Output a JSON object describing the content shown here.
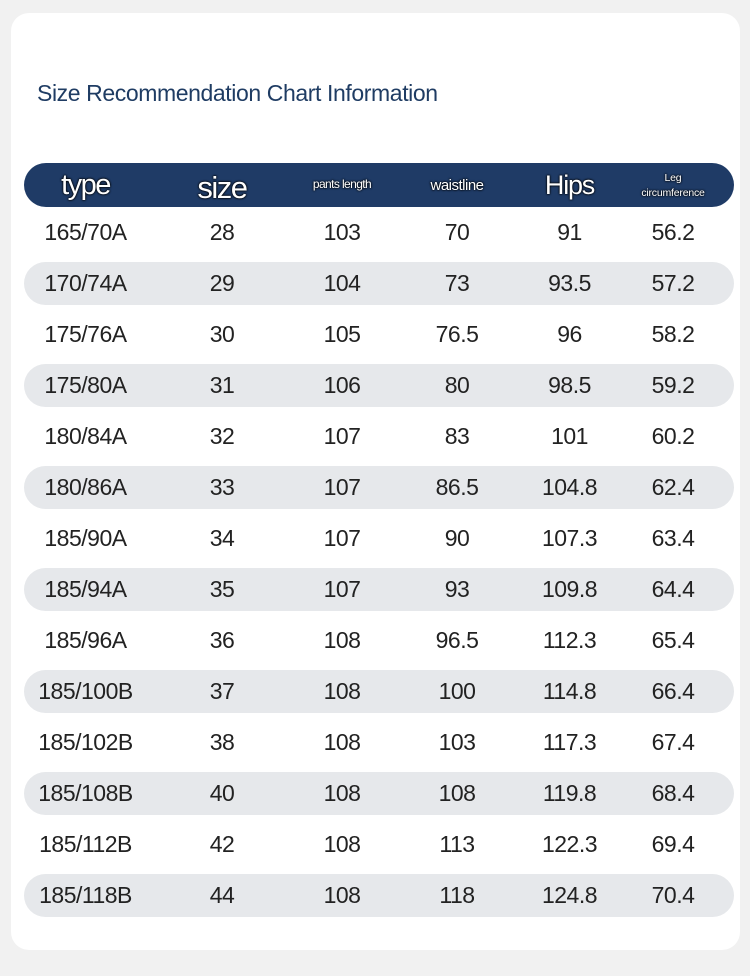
{
  "title": "Size Recommendation Chart Information",
  "headers": {
    "type": "type",
    "size": "size",
    "pants_length": "pants length",
    "waistline": "waistline",
    "hips": "Hips",
    "leg_line1": "Leg",
    "leg_line2": "circumference"
  },
  "rows": [
    [
      "165/70A",
      "28",
      "103",
      "70",
      "91",
      "56.2"
    ],
    [
      "170/74A",
      "29",
      "104",
      "73",
      "93.5",
      "57.2"
    ],
    [
      "175/76A",
      "30",
      "105",
      "76.5",
      "96",
      "58.2"
    ],
    [
      "175/80A",
      "31",
      "106",
      "80",
      "98.5",
      "59.2"
    ],
    [
      "180/84A",
      "32",
      "107",
      "83",
      "101",
      "60.2"
    ],
    [
      "180/86A",
      "33",
      "107",
      "86.5",
      "104.8",
      "62.4"
    ],
    [
      "185/90A",
      "34",
      "107",
      "90",
      "107.3",
      "63.4"
    ],
    [
      "185/94A",
      "35",
      "107",
      "93",
      "109.8",
      "64.4"
    ],
    [
      "185/96A",
      "36",
      "108",
      "96.5",
      "112.3",
      "65.4"
    ],
    [
      "185/100B",
      "37",
      "108",
      "100",
      "114.8",
      "66.4"
    ],
    [
      "185/102B",
      "38",
      "108",
      "103",
      "117.3",
      "67.4"
    ],
    [
      "185/108B",
      "40",
      "108",
      "108",
      "119.8",
      "68.4"
    ],
    [
      "185/112B",
      "42",
      "108",
      "113",
      "122.3",
      "69.4"
    ],
    [
      "185/118B",
      "44",
      "108",
      "118",
      "124.8",
      "70.4"
    ]
  ],
  "colors": {
    "header_bg": "#1f3b66",
    "title": "#1f3c63",
    "stripe": "#e6e8eb",
    "page_bg": "#f1f1f1"
  }
}
